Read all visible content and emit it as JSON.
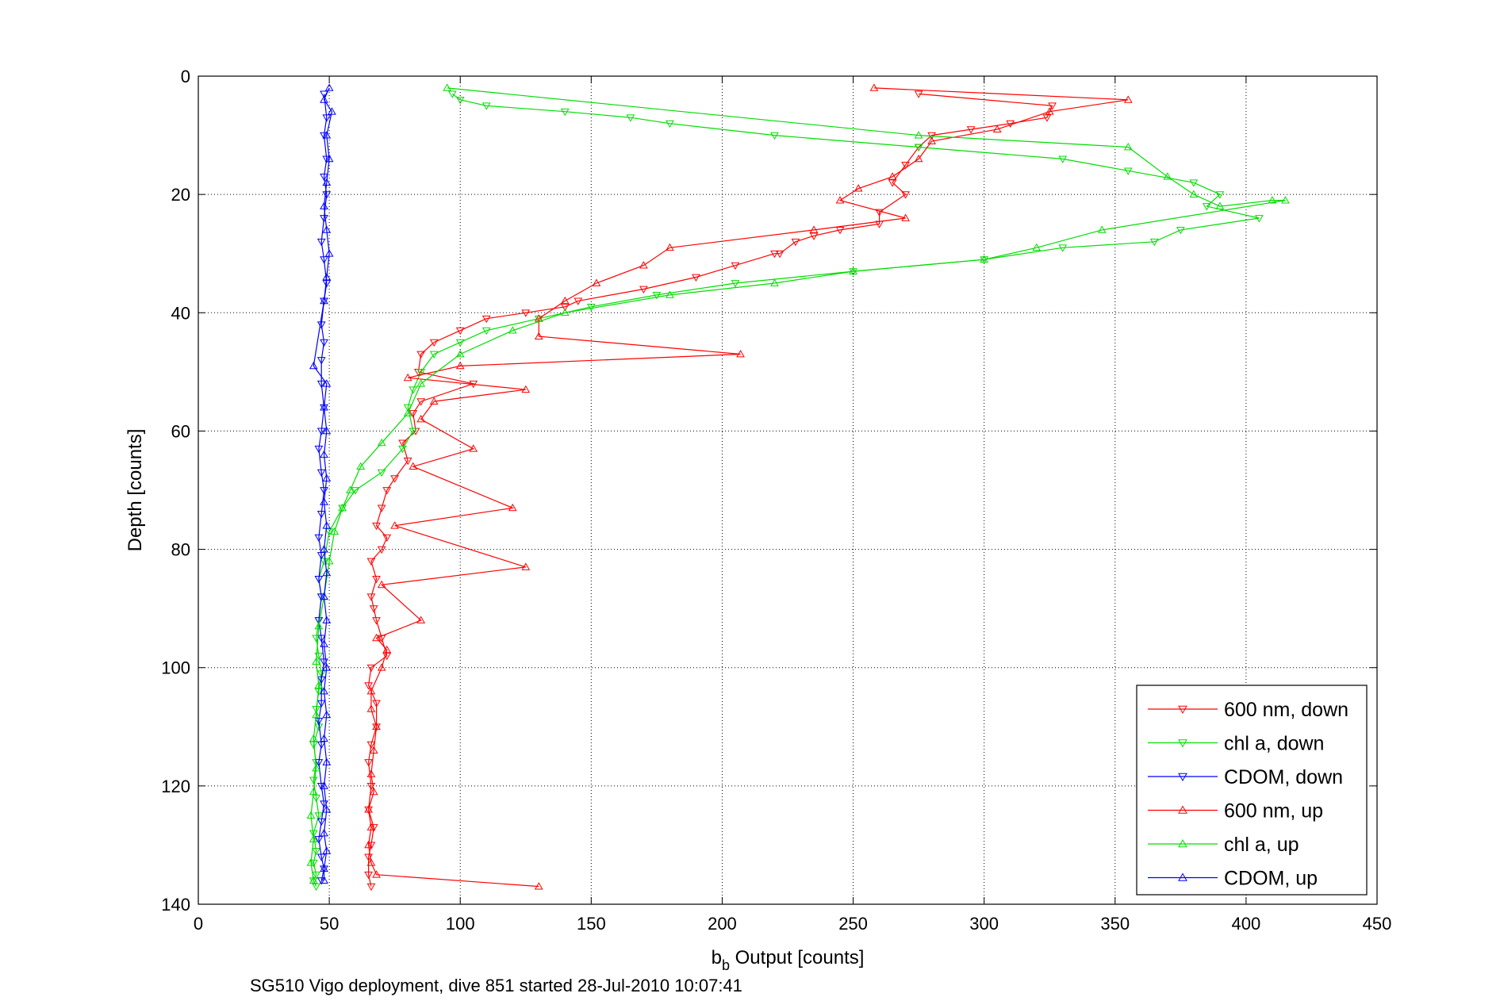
{
  "caption": "SG510 Vigo deployment, dive 851 started 28-Jul-2010 10:07:41",
  "chart_data": {
    "type": "line",
    "xlabel_main": "b",
    "xlabel_sub": "b",
    "xlabel_rest": " Output [counts]",
    "ylabel": "Depth [counts]",
    "xlim": [
      0,
      450
    ],
    "ylim": [
      0,
      140
    ],
    "y_reversed": true,
    "grid": true,
    "legend_position": "bottom-right",
    "xticks": [
      0,
      50,
      100,
      150,
      200,
      250,
      300,
      350,
      400,
      450
    ],
    "yticks": [
      0,
      20,
      40,
      60,
      80,
      100,
      120,
      140
    ],
    "series": [
      {
        "name": "600 nm, down",
        "color": "#ff0000",
        "marker": "triangle-down",
        "x": [
          275,
          326,
          324,
          310,
          295,
          280,
          275,
          270,
          265,
          270,
          260,
          260,
          245,
          235,
          228,
          222,
          220,
          205,
          190,
          170,
          145,
          140,
          125,
          110,
          100,
          90,
          85,
          84,
          105,
          85,
          82,
          83,
          78,
          80,
          75,
          72,
          70,
          68,
          72,
          70,
          66,
          68,
          66,
          67,
          68,
          70,
          72,
          66,
          65,
          68,
          68,
          66,
          65,
          66,
          65,
          67,
          66,
          65,
          65,
          66
        ],
        "y": [
          3,
          5,
          7,
          8,
          9,
          10,
          12,
          15,
          18,
          20,
          23,
          25,
          26,
          27,
          28,
          30,
          30,
          32,
          34,
          36,
          38,
          39,
          40,
          41,
          43,
          45,
          47,
          50,
          52,
          55,
          57,
          60,
          62,
          65,
          68,
          70,
          73,
          76,
          78,
          80,
          82,
          85,
          88,
          90,
          92,
          95,
          98,
          100,
          103,
          106,
          110,
          113,
          116,
          120,
          124,
          127,
          130,
          132,
          135,
          137
        ]
      },
      {
        "name": "chl a, down",
        "color": "#00dd00",
        "marker": "triangle-down",
        "x": [
          97,
          100,
          110,
          140,
          165,
          180,
          220,
          275,
          330,
          355,
          380,
          390,
          385,
          405,
          375,
          365,
          330,
          300,
          250,
          205,
          175,
          150,
          130,
          110,
          100,
          90,
          85,
          82,
          80,
          82,
          78,
          70,
          60,
          55,
          50,
          48,
          46,
          47,
          46,
          45,
          46,
          47,
          46,
          45,
          46,
          44,
          45,
          44,
          45,
          46,
          44,
          45,
          44,
          45,
          44,
          45
        ],
        "y": [
          3,
          4,
          5,
          6,
          7,
          8,
          10,
          12,
          14,
          16,
          18,
          20,
          22,
          24,
          26,
          28,
          29,
          31,
          33,
          35,
          37,
          39,
          41,
          43,
          45,
          47,
          50,
          53,
          56,
          60,
          63,
          67,
          70,
          73,
          77,
          82,
          85,
          88,
          92,
          95,
          98,
          101,
          104,
          107,
          110,
          113,
          116,
          119,
          122,
          125,
          128,
          131,
          133,
          135,
          136,
          137
        ]
      },
      {
        "name": "CDOM, down",
        "color": "#0000ff",
        "marker": "triangle-down",
        "x": [
          48,
          49,
          48,
          49,
          48,
          49,
          48,
          47,
          48,
          49,
          48,
          47,
          48,
          47,
          47,
          48,
          47,
          46,
          47,
          48,
          47,
          46,
          47,
          46,
          47,
          46,
          47,
          48,
          47,
          47,
          46,
          47,
          46,
          47,
          48,
          47,
          46,
          47,
          48,
          47
        ],
        "y": [
          3,
          7,
          10,
          14,
          17,
          20,
          24,
          28,
          31,
          35,
          38,
          42,
          45,
          48,
          52,
          56,
          60,
          63,
          67,
          70,
          74,
          78,
          81,
          85,
          88,
          92,
          95,
          99,
          102,
          106,
          109,
          113,
          116,
          120,
          123,
          126,
          129,
          132,
          134,
          136
        ]
      },
      {
        "name": "600 nm, up",
        "color": "#ff0000",
        "marker": "triangle-up",
        "x": [
          258,
          355,
          325,
          305,
          280,
          275,
          265,
          252,
          245,
          270,
          235,
          180,
          170,
          152,
          140,
          130,
          130,
          207,
          100,
          80,
          125,
          90,
          85,
          105,
          82,
          120,
          75,
          125,
          70,
          85,
          68,
          72,
          70,
          66,
          66,
          68,
          67,
          66,
          67,
          65,
          66,
          65,
          66,
          68,
          130
        ],
        "y": [
          2,
          4,
          6,
          9,
          11,
          14,
          17,
          19,
          21,
          24,
          26,
          29,
          32,
          35,
          38,
          41,
          44,
          47,
          49,
          51,
          53,
          55,
          58,
          63,
          66,
          73,
          76,
          83,
          86,
          92,
          95,
          97,
          100,
          104,
          107,
          110,
          114,
          118,
          121,
          124,
          127,
          130,
          133,
          135,
          137
        ]
      },
      {
        "name": "chl a, up",
        "color": "#00dd00",
        "marker": "triangle-up",
        "x": [
          95,
          275,
          355,
          370,
          380,
          390,
          410,
          415,
          345,
          320,
          300,
          250,
          220,
          180,
          140,
          120,
          100,
          85,
          80,
          70,
          62,
          58,
          55,
          52,
          50,
          48,
          46,
          45,
          46,
          45,
          44,
          45,
          44,
          43,
          44,
          43,
          44
        ],
        "y": [
          2,
          10,
          12,
          17,
          20,
          22,
          21,
          21,
          26,
          29,
          31,
          33,
          35,
          37,
          40,
          43,
          47,
          52,
          57,
          62,
          66,
          70,
          73,
          77,
          82,
          88,
          93,
          99,
          103,
          108,
          112,
          117,
          121,
          125,
          129,
          133,
          136
        ]
      },
      {
        "name": "CDOM, up",
        "color": "#0000ff",
        "marker": "triangle-up",
        "x": [
          50,
          48,
          51,
          49,
          50,
          49,
          48,
          49,
          50,
          49,
          48,
          44,
          49,
          48,
          49,
          48,
          49,
          48,
          49,
          48,
          49,
          48,
          49,
          48,
          49,
          48,
          49,
          48,
          49,
          48,
          49,
          48,
          49,
          48,
          48
        ],
        "y": [
          2,
          4,
          6,
          10,
          14,
          18,
          22,
          26,
          30,
          34,
          38,
          49,
          52,
          56,
          60,
          64,
          68,
          72,
          76,
          80,
          84,
          88,
          92,
          96,
          100,
          104,
          108,
          112,
          116,
          120,
          124,
          128,
          131,
          134,
          136
        ]
      }
    ]
  }
}
